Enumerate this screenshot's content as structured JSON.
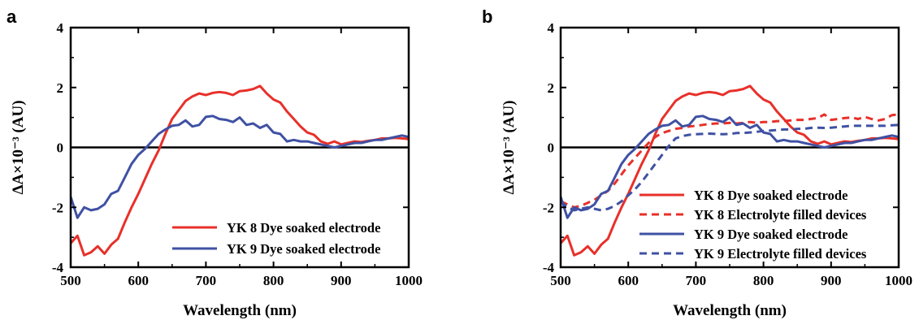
{
  "colors": {
    "red": "#e8302a",
    "blue": "#3f51a3",
    "axis": "#000000"
  },
  "chart_data": [
    {
      "panel": "a",
      "type": "line",
      "xlabel": "Wavelength (nm)",
      "ylabel": "ΔA×10⁻³ (AU)",
      "xlim": [
        500,
        1000
      ],
      "ylim": [
        -4,
        4
      ],
      "xticks": [
        500,
        600,
        700,
        800,
        900,
        1000
      ],
      "yticks": [
        -4,
        -2,
        0,
        2,
        4
      ],
      "zero_line": true,
      "legend_position": "bottom-right",
      "series": [
        {
          "name": "YK 8 Dye soaked electrode",
          "color": "#e8302a",
          "dash": "solid",
          "x": [
            500,
            510,
            520,
            530,
            540,
            550,
            560,
            570,
            580,
            590,
            600,
            610,
            620,
            630,
            640,
            650,
            660,
            670,
            680,
            690,
            700,
            710,
            720,
            730,
            740,
            750,
            760,
            770,
            780,
            790,
            800,
            810,
            820,
            830,
            840,
            850,
            860,
            870,
            880,
            890,
            900,
            910,
            920,
            930,
            940,
            950,
            960,
            970,
            980,
            990,
            1000
          ],
          "y": [
            -3.2,
            -2.95,
            -3.6,
            -3.5,
            -3.3,
            -3.55,
            -3.25,
            -3.05,
            -2.5,
            -2.0,
            -1.55,
            -1.05,
            -0.55,
            -0.1,
            0.45,
            0.95,
            1.25,
            1.55,
            1.7,
            1.8,
            1.75,
            1.82,
            1.85,
            1.82,
            1.75,
            1.88,
            1.9,
            1.95,
            2.05,
            1.8,
            1.6,
            1.5,
            1.2,
            0.95,
            0.7,
            0.5,
            0.42,
            0.2,
            0.12,
            0.2,
            0.1,
            0.15,
            0.2,
            0.18,
            0.22,
            0.25,
            0.3,
            0.3,
            0.32,
            0.3,
            0.28
          ]
        },
        {
          "name": "YK 9 Dye soaked electrode",
          "color": "#3f51a3",
          "dash": "solid",
          "x": [
            500,
            510,
            520,
            530,
            540,
            550,
            560,
            570,
            580,
            590,
            600,
            610,
            620,
            630,
            640,
            650,
            660,
            670,
            680,
            690,
            700,
            710,
            720,
            730,
            740,
            750,
            760,
            770,
            780,
            790,
            800,
            810,
            820,
            830,
            840,
            850,
            860,
            870,
            880,
            890,
            900,
            910,
            920,
            930,
            940,
            950,
            960,
            970,
            980,
            990,
            1000
          ],
          "y": [
            -1.65,
            -2.35,
            -2.0,
            -2.1,
            -2.05,
            -1.9,
            -1.55,
            -1.45,
            -1.0,
            -0.55,
            -0.25,
            -0.05,
            0.2,
            0.45,
            0.6,
            0.72,
            0.75,
            0.9,
            0.7,
            0.75,
            1.02,
            1.05,
            0.95,
            0.92,
            0.85,
            1.0,
            0.75,
            0.8,
            0.65,
            0.75,
            0.5,
            0.45,
            0.2,
            0.25,
            0.2,
            0.2,
            0.15,
            0.1,
            0.05,
            0.0,
            0.05,
            0.1,
            0.15,
            0.15,
            0.2,
            0.25,
            0.25,
            0.3,
            0.35,
            0.4,
            0.35
          ]
        }
      ]
    },
    {
      "panel": "b",
      "type": "line",
      "xlabel": "Wavelength (nm)",
      "ylabel": "ΔA×10⁻³ (AU)",
      "xlim": [
        500,
        1000
      ],
      "ylim": [
        -4,
        4
      ],
      "xticks": [
        500,
        600,
        700,
        800,
        900,
        1000
      ],
      "yticks": [
        -4,
        -2,
        0,
        2,
        4
      ],
      "zero_line": true,
      "legend_position": "bottom-right",
      "series": [
        {
          "name": "YK 8 Dye soaked electrode",
          "color": "#e8302a",
          "dash": "solid",
          "x": [
            500,
            510,
            520,
            530,
            540,
            550,
            560,
            570,
            580,
            590,
            600,
            610,
            620,
            630,
            640,
            650,
            660,
            670,
            680,
            690,
            700,
            710,
            720,
            730,
            740,
            750,
            760,
            770,
            780,
            790,
            800,
            810,
            820,
            830,
            840,
            850,
            860,
            870,
            880,
            890,
            900,
            910,
            920,
            930,
            940,
            950,
            960,
            970,
            980,
            990,
            1000
          ],
          "y": [
            -3.2,
            -2.95,
            -3.6,
            -3.5,
            -3.3,
            -3.55,
            -3.25,
            -3.05,
            -2.5,
            -2.0,
            -1.55,
            -1.05,
            -0.55,
            -0.1,
            0.45,
            0.95,
            1.25,
            1.55,
            1.7,
            1.8,
            1.75,
            1.82,
            1.85,
            1.82,
            1.75,
            1.88,
            1.9,
            1.95,
            2.05,
            1.8,
            1.6,
            1.5,
            1.2,
            0.95,
            0.7,
            0.5,
            0.42,
            0.2,
            0.12,
            0.2,
            0.1,
            0.15,
            0.2,
            0.18,
            0.22,
            0.25,
            0.3,
            0.3,
            0.32,
            0.3,
            0.28
          ]
        },
        {
          "name": "YK 8 Electrolyte filled devices",
          "color": "#e8302a",
          "dash": "dashed",
          "x": [
            500,
            510,
            520,
            530,
            540,
            550,
            560,
            570,
            580,
            590,
            600,
            610,
            620,
            630,
            640,
            650,
            660,
            670,
            680,
            690,
            700,
            710,
            720,
            730,
            740,
            750,
            760,
            770,
            780,
            790,
            800,
            810,
            820,
            830,
            840,
            850,
            860,
            870,
            880,
            890,
            900,
            910,
            920,
            930,
            940,
            950,
            960,
            970,
            980,
            990,
            1000
          ],
          "y": [
            -1.8,
            -1.9,
            -2.0,
            -1.95,
            -1.85,
            -1.75,
            -1.6,
            -1.45,
            -1.2,
            -0.9,
            -0.6,
            -0.35,
            -0.1,
            0.15,
            0.35,
            0.48,
            0.55,
            0.62,
            0.65,
            0.7,
            0.72,
            0.75,
            0.78,
            0.8,
            0.8,
            0.82,
            0.8,
            0.82,
            0.85,
            0.82,
            0.85,
            0.85,
            0.88,
            0.88,
            0.9,
            0.92,
            0.92,
            0.95,
            0.98,
            1.1,
            0.92,
            0.95,
            0.98,
            1.0,
            0.95,
            1.02,
            0.95,
            0.9,
            0.95,
            1.08,
            1.1
          ]
        },
        {
          "name": "YK 9 Dye soaked electrode",
          "color": "#3f51a3",
          "dash": "solid",
          "x": [
            500,
            510,
            520,
            530,
            540,
            550,
            560,
            570,
            580,
            590,
            600,
            610,
            620,
            630,
            640,
            650,
            660,
            670,
            680,
            690,
            700,
            710,
            720,
            730,
            740,
            750,
            760,
            770,
            780,
            790,
            800,
            810,
            820,
            830,
            840,
            850,
            860,
            870,
            880,
            890,
            900,
            910,
            920,
            930,
            940,
            950,
            960,
            970,
            980,
            990,
            1000
          ],
          "y": [
            -1.65,
            -2.35,
            -2.0,
            -2.1,
            -2.05,
            -1.9,
            -1.55,
            -1.45,
            -1.0,
            -0.55,
            -0.25,
            -0.05,
            0.2,
            0.45,
            0.6,
            0.72,
            0.75,
            0.9,
            0.7,
            0.75,
            1.02,
            1.05,
            0.95,
            0.92,
            0.85,
            1.0,
            0.75,
            0.8,
            0.65,
            0.75,
            0.5,
            0.45,
            0.2,
            0.25,
            0.2,
            0.2,
            0.15,
            0.1,
            0.05,
            0.0,
            0.05,
            0.1,
            0.15,
            0.15,
            0.2,
            0.25,
            0.25,
            0.3,
            0.35,
            0.4,
            0.35
          ]
        },
        {
          "name": "YK 9 Electrolyte filled devices",
          "color": "#3f51a3",
          "dash": "dashed",
          "x": [
            500,
            510,
            520,
            530,
            540,
            550,
            560,
            570,
            580,
            590,
            600,
            610,
            620,
            630,
            640,
            650,
            660,
            670,
            680,
            690,
            700,
            710,
            720,
            730,
            740,
            750,
            760,
            770,
            780,
            790,
            800,
            810,
            820,
            830,
            840,
            850,
            860,
            870,
            880,
            890,
            900,
            910,
            920,
            930,
            940,
            950,
            960,
            970,
            980,
            990,
            1000
          ],
          "y": [
            -1.8,
            -2.0,
            -2.1,
            -2.05,
            -2.0,
            -2.05,
            -2.1,
            -2.05,
            -1.95,
            -1.8,
            -1.6,
            -1.4,
            -1.15,
            -0.85,
            -0.55,
            -0.25,
            0.05,
            0.3,
            0.38,
            0.42,
            0.44,
            0.45,
            0.46,
            0.45,
            0.44,
            0.45,
            0.48,
            0.48,
            0.5,
            0.52,
            0.55,
            0.56,
            0.58,
            0.6,
            0.6,
            0.62,
            0.62,
            0.65,
            0.66,
            0.65,
            0.66,
            0.68,
            0.7,
            0.72,
            0.72,
            0.72,
            0.72,
            0.72,
            0.72,
            0.74,
            0.75
          ]
        }
      ]
    }
  ]
}
